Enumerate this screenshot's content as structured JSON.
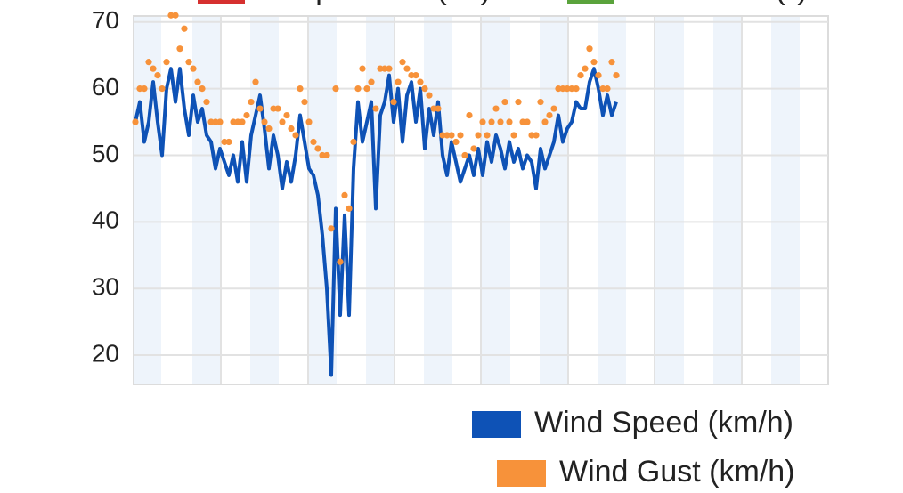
{
  "chart_data": {
    "type": "line",
    "other_series": [
      {
        "name": "Temperature (°C)",
        "color": "#d6302f"
      },
      {
        "name": "Dew Point (°)",
        "color": "#5aa33c"
      }
    ],
    "series": [
      {
        "name": "Wind Speed (km/h)",
        "color": "#0e52b6",
        "style": "line",
        "values": [
          55,
          58,
          52,
          55,
          61,
          55,
          50,
          60,
          63,
          58,
          63,
          57,
          53,
          59,
          55,
          57,
          53,
          52,
          48,
          51,
          49,
          47,
          50,
          46,
          52,
          46,
          53,
          56,
          59,
          54,
          48,
          53,
          50,
          45,
          49,
          46,
          50,
          56,
          52,
          48,
          47,
          44,
          38,
          30,
          17,
          42,
          26,
          41,
          26,
          48,
          58,
          52,
          55,
          58,
          42,
          56,
          58,
          62,
          55,
          60,
          52,
          59,
          61,
          55,
          60,
          51,
          57,
          53,
          58,
          50,
          47,
          52,
          49,
          46,
          48,
          50,
          47,
          51,
          47,
          52,
          49,
          53,
          51,
          48,
          52,
          49,
          51,
          48,
          50,
          49,
          45,
          51,
          48,
          50,
          52,
          56,
          52,
          54,
          55,
          58,
          57,
          57,
          61,
          63,
          60,
          56,
          59,
          56,
          58
        ]
      },
      {
        "name": "Wind Gust (km/h)",
        "color": "#f7923a",
        "style": "dots",
        "values": [
          55,
          60,
          60,
          64,
          63,
          62,
          60,
          64,
          71,
          71,
          66,
          69,
          64,
          63,
          61,
          60,
          58,
          55,
          55,
          55,
          52,
          52,
          55,
          55,
          55,
          56,
          58,
          61,
          57,
          55,
          54,
          57,
          57,
          55,
          56,
          54,
          53,
          60,
          58,
          55,
          52,
          51,
          50,
          50,
          39,
          60,
          34,
          44,
          42,
          52,
          60,
          63,
          60,
          61,
          57,
          63,
          63,
          63,
          58,
          61,
          64,
          63,
          62,
          62,
          61,
          60,
          59,
          57,
          57,
          53,
          53,
          53,
          52,
          53,
          50,
          56,
          51,
          53,
          55,
          53,
          55,
          57,
          55,
          58,
          55,
          53,
          58,
          55,
          55,
          53,
          53,
          58,
          55,
          56,
          57,
          60,
          60,
          60,
          60,
          60,
          62,
          63,
          66,
          64,
          62,
          60,
          60,
          64,
          62
        ]
      }
    ],
    "ylim": [
      15.6,
      70.9
    ],
    "yticks": [
      20,
      30,
      40,
      50,
      60,
      70
    ],
    "grid": true
  }
}
